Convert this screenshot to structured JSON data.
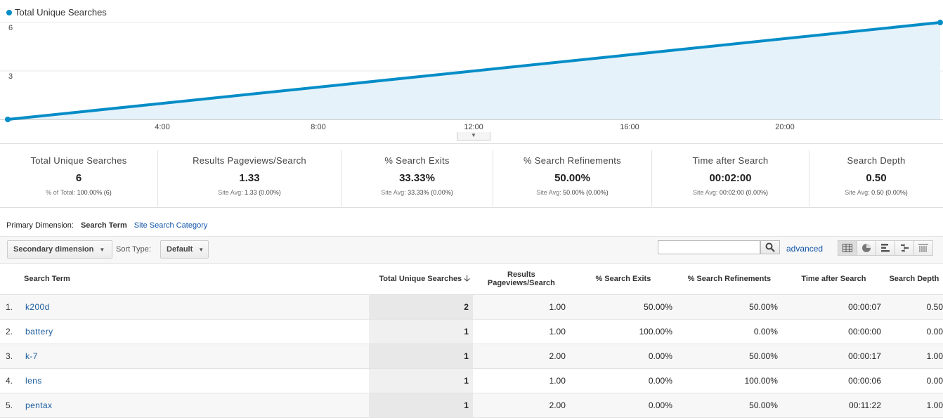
{
  "chart": {
    "legend": "Total Unique Searches",
    "y_ticks": [
      "6",
      "3"
    ],
    "x_ticks": [
      "4:00",
      "8:00",
      "12:00",
      "16:00",
      "20:00"
    ]
  },
  "chart_data": {
    "type": "area",
    "series": [
      {
        "name": "Total Unique Searches",
        "values": [
          0,
          6
        ]
      }
    ],
    "x": [
      "0:00",
      "23:00"
    ],
    "ylim": [
      0,
      6
    ],
    "y_ticks": [
      3,
      6
    ],
    "x_ticks": [
      "4:00",
      "8:00",
      "12:00",
      "16:00",
      "20:00"
    ],
    "color": "#058dc7",
    "grid": true,
    "legend_position": "top-left"
  },
  "scorecards": [
    {
      "label": "Total Unique Searches",
      "value": "6",
      "sub_prefix": "% of Total:",
      "sub_value": "100.00% (6)"
    },
    {
      "label": "Results Pageviews/Search",
      "value": "1.33",
      "sub_prefix": "Site Avg:",
      "sub_value": "1.33 (0.00%)"
    },
    {
      "label": "% Search Exits",
      "value": "33.33%",
      "sub_prefix": "Site Avg:",
      "sub_value": "33.33% (0.00%)"
    },
    {
      "label": "% Search Refinements",
      "value": "50.00%",
      "sub_prefix": "Site Avg:",
      "sub_value": "50.00% (0.00%)"
    },
    {
      "label": "Time after Search",
      "value": "00:02:00",
      "sub_prefix": "Site Avg:",
      "sub_value": "00:02:00 (0.00%)"
    },
    {
      "label": "Search Depth",
      "value": "0.50",
      "sub_prefix": "Site Avg:",
      "sub_value": "0.50 (0.00%)"
    }
  ],
  "primary_dimension": {
    "label": "Primary Dimension:",
    "active": "Search Term",
    "other": "Site Search Category"
  },
  "toolbar": {
    "secondary_dimension": "Secondary dimension",
    "sort_type_label": "Sort Type:",
    "sort_type_value": "Default",
    "search_value": "",
    "advanced": "advanced"
  },
  "table": {
    "headers": {
      "term": "Search Term",
      "unique": "Total Unique Searches",
      "results": "Results Pageviews/Search",
      "exits": "% Search Exits",
      "refinements": "% Search Refinements",
      "time": "Time after Search",
      "depth": "Search Depth"
    },
    "rows": [
      {
        "idx": "1.",
        "term": "k200d",
        "unique": "2",
        "results": "1.00",
        "exits": "50.00%",
        "refinements": "50.00%",
        "time": "00:00:07",
        "depth": "0.50"
      },
      {
        "idx": "2.",
        "term": "battery",
        "unique": "1",
        "results": "1.00",
        "exits": "100.00%",
        "refinements": "0.00%",
        "time": "00:00:00",
        "depth": "0.00"
      },
      {
        "idx": "3.",
        "term": "k-7",
        "unique": "1",
        "results": "2.00",
        "exits": "0.00%",
        "refinements": "50.00%",
        "time": "00:00:17",
        "depth": "1.00"
      },
      {
        "idx": "4.",
        "term": "lens",
        "unique": "1",
        "results": "1.00",
        "exits": "0.00%",
        "refinements": "100.00%",
        "time": "00:00:06",
        "depth": "0.00"
      },
      {
        "idx": "5.",
        "term": "pentax",
        "unique": "1",
        "results": "2.00",
        "exits": "0.00%",
        "refinements": "50.00%",
        "time": "00:11:22",
        "depth": "1.00"
      }
    ]
  }
}
